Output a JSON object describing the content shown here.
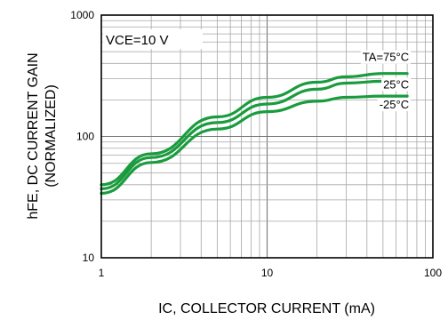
{
  "chart_data": {
    "type": "line",
    "title": "",
    "xlabel": "IC, COLLECTOR CURRENT (mA)",
    "ylabel_line1": "hFE, DC CURRENT GAIN",
    "ylabel_line2": "(NORMALIZED)",
    "xscale": "log",
    "yscale": "log",
    "xlim": [
      1,
      100
    ],
    "ylim": [
      10,
      1000
    ],
    "grid": true,
    "xticks": [
      {
        "v": 1,
        "label": "1"
      },
      {
        "v": 10,
        "label": "10"
      },
      {
        "v": 100,
        "label": "100"
      }
    ],
    "yticks": [
      {
        "v": 10,
        "label": "10"
      },
      {
        "v": 100,
        "label": "100"
      },
      {
        "v": 1000,
        "label": "1000"
      }
    ],
    "annotation": "VCE=10 V",
    "line_color": "#1a9c3e",
    "series": [
      {
        "name": "TA=75°C",
        "x": [
          1,
          2,
          5,
          10,
          20,
          30,
          50,
          70
        ],
        "y": [
          40,
          72,
          145,
          210,
          280,
          310,
          330,
          330
        ]
      },
      {
        "name": "25°C",
        "x": [
          1,
          2,
          5,
          10,
          20,
          30,
          50,
          70
        ],
        "y": [
          37,
          67,
          130,
          185,
          245,
          275,
          285,
          285
        ]
      },
      {
        "name": "-25°C",
        "x": [
          1,
          2,
          5,
          10,
          20,
          30,
          50,
          70
        ],
        "y": [
          34,
          61,
          115,
          160,
          195,
          210,
          215,
          215
        ]
      }
    ]
  }
}
